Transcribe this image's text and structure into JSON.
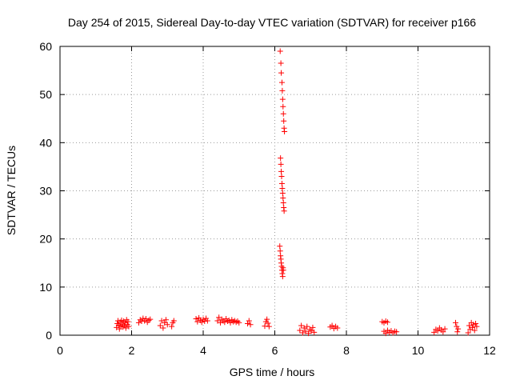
{
  "chart_data": {
    "type": "scatter",
    "title": "Day 254 of 2015, Sidereal Day-to-day VTEC variation (SDTVAR) for receiver p166",
    "xlabel": "GPS time / hours",
    "ylabel": "SDTVAR / TECUs",
    "xlim": [
      0,
      12
    ],
    "ylim": [
      0,
      60
    ],
    "xticks": [
      0,
      2,
      4,
      6,
      8,
      10,
      12
    ],
    "yticks": [
      0,
      10,
      20,
      30,
      40,
      50,
      60
    ],
    "grid": true,
    "marker": "+",
    "color": "#ff0000",
    "series": [
      {
        "name": "SDTVAR",
        "points": [
          [
            1.58,
            1.6
          ],
          [
            1.6,
            2.4
          ],
          [
            1.62,
            3.0
          ],
          [
            1.64,
            2.1
          ],
          [
            1.66,
            1.3
          ],
          [
            1.68,
            2.7
          ],
          [
            1.7,
            1.9
          ],
          [
            1.72,
            3.1
          ],
          [
            1.74,
            2.3
          ],
          [
            1.76,
            1.7
          ],
          [
            1.78,
            2.9
          ],
          [
            1.8,
            2.0
          ],
          [
            1.82,
            2.6
          ],
          [
            1.84,
            1.5
          ],
          [
            1.86,
            3.2
          ],
          [
            1.88,
            2.2
          ],
          [
            1.9,
            2.8
          ],
          [
            1.92,
            1.8
          ],
          [
            2.2,
            2.6
          ],
          [
            2.24,
            3.2
          ],
          [
            2.28,
            2.9
          ],
          [
            2.32,
            3.5
          ],
          [
            2.36,
            3.0
          ],
          [
            2.4,
            3.4
          ],
          [
            2.44,
            2.7
          ],
          [
            2.48,
            3.1
          ],
          [
            2.52,
            3.3
          ],
          [
            2.8,
            2.0
          ],
          [
            2.84,
            3.0
          ],
          [
            2.88,
            1.5
          ],
          [
            2.92,
            2.6
          ],
          [
            2.96,
            3.2
          ],
          [
            3.0,
            2.2
          ],
          [
            3.12,
            1.8
          ],
          [
            3.15,
            2.6
          ],
          [
            3.18,
            3.0
          ],
          [
            3.8,
            3.4
          ],
          [
            3.84,
            2.8
          ],
          [
            3.88,
            3.6
          ],
          [
            3.92,
            3.1
          ],
          [
            3.96,
            2.7
          ],
          [
            4.0,
            3.3
          ],
          [
            4.04,
            2.9
          ],
          [
            4.08,
            3.5
          ],
          [
            4.12,
            3.0
          ],
          [
            4.4,
            3.0
          ],
          [
            4.44,
            3.7
          ],
          [
            4.48,
            2.6
          ],
          [
            4.52,
            3.3
          ],
          [
            4.56,
            3.0
          ],
          [
            4.6,
            2.7
          ],
          [
            4.64,
            3.4
          ],
          [
            4.68,
            2.9
          ],
          [
            4.72,
            3.1
          ],
          [
            4.76,
            2.6
          ],
          [
            4.8,
            3.2
          ],
          [
            4.84,
            2.8
          ],
          [
            4.88,
            3.0
          ],
          [
            4.92,
            2.7
          ],
          [
            4.96,
            2.9
          ],
          [
            5.0,
            2.6
          ],
          [
            5.24,
            2.4
          ],
          [
            5.28,
            3.0
          ],
          [
            5.32,
            2.2
          ],
          [
            5.72,
            1.9
          ],
          [
            5.75,
            2.8
          ],
          [
            5.78,
            3.3
          ],
          [
            5.81,
            2.5
          ],
          [
            5.84,
            1.8
          ],
          [
            6.15,
            59
          ],
          [
            6.17,
            56.5
          ],
          [
            6.18,
            54.5
          ],
          [
            6.2,
            52.5
          ],
          [
            6.21,
            50.8
          ],
          [
            6.22,
            49
          ],
          [
            6.23,
            47.5
          ],
          [
            6.24,
            46
          ],
          [
            6.25,
            44.5
          ],
          [
            6.26,
            43
          ],
          [
            6.27,
            42.3
          ],
          [
            6.16,
            36.8
          ],
          [
            6.17,
            35.5
          ],
          [
            6.18,
            34
          ],
          [
            6.19,
            33
          ],
          [
            6.2,
            31.5
          ],
          [
            6.21,
            30.5
          ],
          [
            6.22,
            29.5
          ],
          [
            6.23,
            28.5
          ],
          [
            6.24,
            27.5
          ],
          [
            6.25,
            26.5
          ],
          [
            6.26,
            25.8
          ],
          [
            6.14,
            18.5
          ],
          [
            6.15,
            17.5
          ],
          [
            6.16,
            16.5
          ],
          [
            6.17,
            15.8
          ],
          [
            6.18,
            15
          ],
          [
            6.19,
            14.3
          ],
          [
            6.2,
            13.5
          ],
          [
            6.21,
            12.8
          ],
          [
            6.22,
            12.2
          ],
          [
            6.23,
            14
          ],
          [
            6.24,
            13.5
          ],
          [
            6.7,
            1.0
          ],
          [
            6.74,
            2.0
          ],
          [
            6.78,
            0.5
          ],
          [
            6.82,
            1.5
          ],
          [
            6.86,
            0.8
          ],
          [
            6.9,
            1.8
          ],
          [
            6.94,
            0.4
          ],
          [
            6.98,
            1.2
          ],
          [
            7.02,
            0.9
          ],
          [
            7.06,
            1.6
          ],
          [
            7.1,
            0.6
          ],
          [
            7.55,
            1.7
          ],
          [
            7.6,
            2.0
          ],
          [
            7.65,
            1.4
          ],
          [
            7.7,
            1.8
          ],
          [
            7.75,
            1.5
          ],
          [
            9.0,
            2.8
          ],
          [
            9.05,
            2.6
          ],
          [
            9.1,
            2.9
          ],
          [
            9.15,
            2.7
          ],
          [
            9.05,
            0.8
          ],
          [
            9.1,
            0.4
          ],
          [
            9.15,
            1.0
          ],
          [
            9.2,
            0.6
          ],
          [
            9.25,
            0.9
          ],
          [
            9.3,
            0.5
          ],
          [
            9.35,
            0.8
          ],
          [
            9.4,
            0.7
          ],
          [
            10.45,
            0.6
          ],
          [
            10.5,
            1.2
          ],
          [
            10.55,
            0.9
          ],
          [
            10.6,
            1.5
          ],
          [
            10.65,
            1.1
          ],
          [
            10.7,
            0.7
          ],
          [
            10.75,
            1.3
          ],
          [
            11.05,
            2.6
          ],
          [
            11.08,
            1.8
          ],
          [
            11.1,
            0.7
          ],
          [
            11.12,
            1.3
          ],
          [
            11.4,
            0.5
          ],
          [
            11.43,
            2.0
          ],
          [
            11.46,
            1.2
          ],
          [
            11.49,
            2.6
          ],
          [
            11.52,
            1.6
          ],
          [
            11.55,
            2.2
          ],
          [
            11.58,
            1.0
          ],
          [
            11.61,
            2.4
          ],
          [
            11.64,
            1.8
          ]
        ]
      }
    ]
  }
}
